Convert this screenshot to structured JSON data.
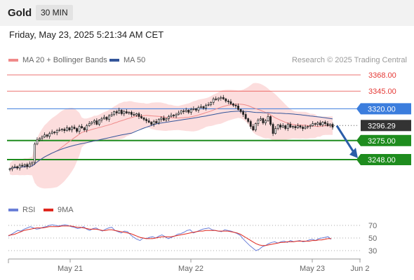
{
  "header": {
    "title": "Gold",
    "timeframe": "30 MIN"
  },
  "date_line": "Friday, May 23, 2025 5:21:34 AM CET",
  "legend": {
    "ma20": "MA 20 + Bollinger Bands",
    "ma50": "MA 50"
  },
  "credit": "Research © 2025 Trading Central",
  "rsi_legend": {
    "rsi": "RSI",
    "ma9": "9MA"
  },
  "colors": {
    "resistance": "#e53935",
    "pivot": "#3b7ddd",
    "support": "#1e8c1e",
    "current": "#333333",
    "bollinger": "#fbd2d2",
    "ma20": "#f08a8a",
    "ma50": "#34559a",
    "up_candle": "#ffffff",
    "down_candle": "#222222",
    "rsi": "#6a7fd8",
    "ma9": "#e0281e",
    "arrow": "#2a5da8"
  },
  "chart_data": {
    "type": "candlestick",
    "x_ticks": [
      "May 21",
      "May 22",
      "May 23",
      "Jun 2"
    ],
    "levels": [
      {
        "label": "3368.00",
        "value": 3368.0,
        "kind": "resistance"
      },
      {
        "label": "3345.00",
        "value": 3345.0,
        "kind": "resistance"
      },
      {
        "label": "3320.00",
        "value": 3320.0,
        "kind": "pivot"
      },
      {
        "label": "3296.29",
        "value": 3296.29,
        "kind": "current"
      },
      {
        "label": "3275.00",
        "value": 3275.0,
        "kind": "support"
      },
      {
        "label": "3248.00",
        "value": 3248.0,
        "kind": "support"
      }
    ],
    "closes": [
      3235,
      3237,
      3238,
      3236,
      3240,
      3239,
      3241,
      3238,
      3242,
      3244,
      3270,
      3276,
      3278,
      3280,
      3283,
      3281,
      3285,
      3287,
      3286,
      3289,
      3290,
      3291,
      3289,
      3293,
      3290,
      3294,
      3292,
      3288,
      3295,
      3293,
      3290,
      3296,
      3299,
      3301,
      3303,
      3298,
      3304,
      3306,
      3308,
      3305,
      3310,
      3312,
      3316,
      3314,
      3318,
      3313,
      3316,
      3314,
      3315,
      3312,
      3311,
      3313,
      3309,
      3307,
      3305,
      3303,
      3301,
      3298,
      3302,
      3300,
      3305,
      3307,
      3304,
      3306,
      3309,
      3311,
      3310,
      3312,
      3314,
      3317,
      3316,
      3318,
      3315,
      3319,
      3320,
      3318,
      3322,
      3323,
      3321,
      3325,
      3326,
      3329,
      3334,
      3333,
      3335,
      3336,
      3334,
      3331,
      3330,
      3327,
      3325,
      3324,
      3319,
      3316,
      3312,
      3306,
      3302,
      3295,
      3290,
      3299,
      3304,
      3306,
      3300,
      3303,
      3309,
      3298,
      3285,
      3292,
      3297,
      3294,
      3296,
      3292,
      3298,
      3294,
      3295,
      3293,
      3296,
      3294,
      3292,
      3294,
      3295,
      3296,
      3299,
      3298,
      3300,
      3297,
      3301,
      3299,
      3296,
      3298,
      3294
    ],
    "rsi": [
      53,
      56,
      59,
      62,
      61,
      64,
      66,
      68,
      66,
      64,
      65,
      67,
      68,
      70,
      71,
      70,
      69,
      70,
      71,
      70,
      68,
      67,
      65,
      66,
      68,
      64,
      62,
      65,
      66,
      63,
      61,
      64,
      66,
      67,
      62,
      60,
      58,
      61,
      60,
      55,
      51,
      48,
      46,
      50,
      49,
      51,
      52,
      50,
      53,
      55,
      52,
      49,
      51,
      53,
      56,
      57,
      59,
      62,
      63,
      58,
      60,
      62,
      64,
      65,
      66,
      63,
      62,
      61,
      60,
      63,
      62,
      61,
      59,
      57,
      54,
      48,
      43,
      38,
      34,
      30,
      32,
      36,
      38,
      41,
      43,
      44,
      42,
      44,
      45,
      43,
      46,
      44,
      45,
      46,
      44,
      45,
      47,
      48,
      46,
      49,
      50,
      51,
      52,
      48
    ],
    "rsi_ma9": [
      54,
      55,
      56,
      58,
      60,
      62,
      63,
      64,
      65,
      66,
      66,
      66,
      67,
      68,
      68,
      68,
      68,
      69,
      69,
      69,
      69,
      68,
      67,
      67,
      66,
      65,
      64,
      64,
      64,
      63,
      62,
      62,
      63,
      63,
      62,
      61,
      60,
      59,
      58,
      57,
      55,
      53,
      51,
      50,
      49,
      49,
      49,
      50,
      51,
      52,
      52,
      52,
      52,
      53,
      54,
      55,
      56,
      57,
      58,
      59,
      60,
      61,
      61,
      62,
      62,
      62,
      62,
      61,
      61,
      61,
      61,
      60,
      59,
      58,
      56,
      53,
      50,
      47,
      44,
      41,
      39,
      38,
      38,
      39,
      40,
      41,
      42,
      43,
      43,
      44,
      44,
      44,
      45,
      45,
      45,
      45,
      45,
      46,
      46,
      47,
      47,
      48,
      49,
      49
    ],
    "rsi_ticks": [
      {
        "label": "70",
        "value": 70
      },
      {
        "label": "50",
        "value": 50
      },
      {
        "label": "30",
        "value": 30
      }
    ]
  }
}
